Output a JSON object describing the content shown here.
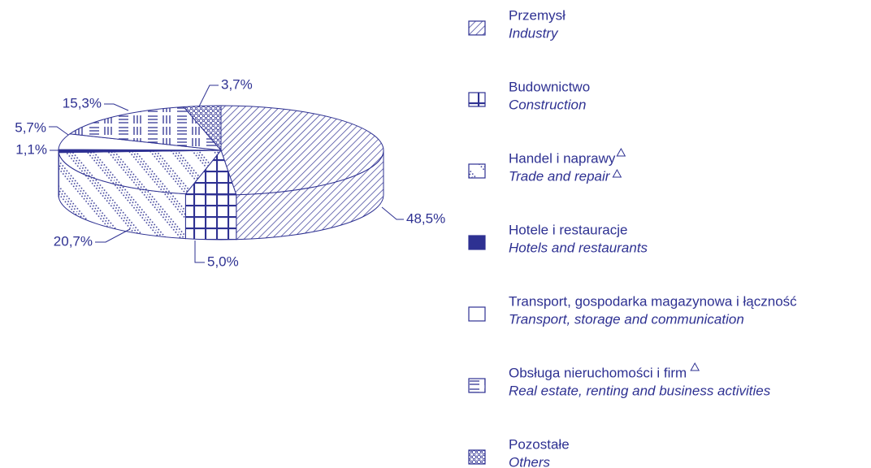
{
  "chart_data": {
    "type": "pie",
    "categories": [
      "Przemysł",
      "Budownictwo",
      "Handel i naprawy",
      "Hotele i restauracje",
      "Transport, gospodarka magazynowa i łączność",
      "Obsługa nieruchomości i firm",
      "Pozostałe"
    ],
    "categories_translation": [
      "Industry",
      "Construction",
      "Trade and repair",
      "Hotels and restaurants",
      "Transport, storage and communication",
      "Real estate, renting and business activities",
      "Others"
    ],
    "values": [
      48.5,
      5.0,
      20.7,
      1.1,
      5.7,
      15.3,
      3.7
    ],
    "value_labels": [
      "48,5%",
      "5,0%",
      "20,7%",
      "1,1%",
      "5,7%",
      "15,3%",
      "3,7%"
    ],
    "color": "#2e3192"
  }
}
